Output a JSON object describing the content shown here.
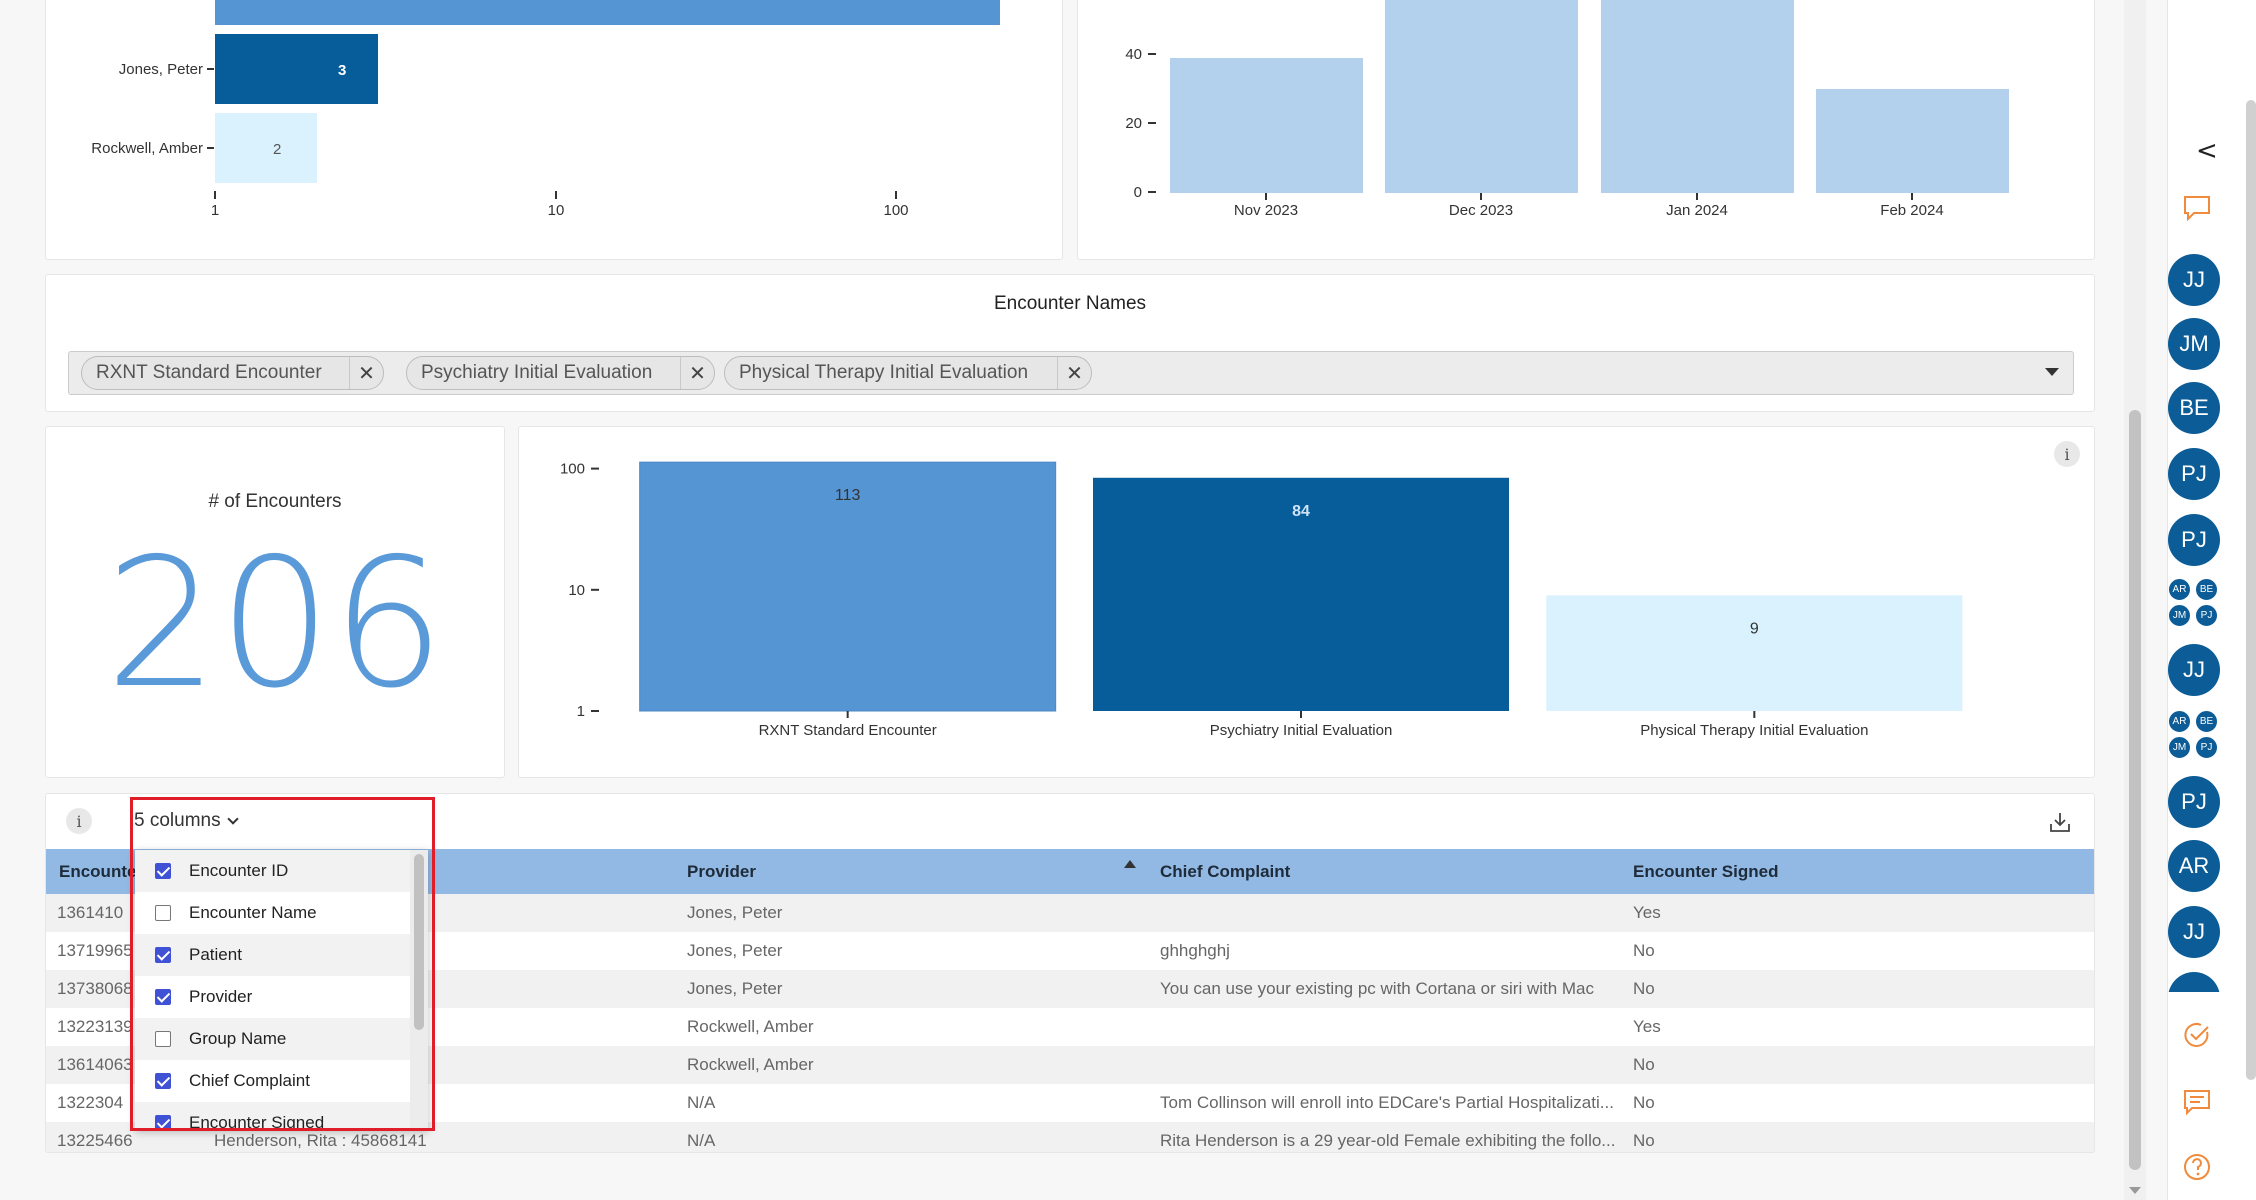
{
  "top_left_chart": {
    "bars": [
      {
        "label": "",
        "value_text": ""
      },
      {
        "label": "Jones, Peter",
        "value_text": "3"
      },
      {
        "label": "Rockwell, Amber",
        "value_text": "2"
      }
    ],
    "x_ticks": [
      "1",
      "10",
      "100"
    ]
  },
  "top_right_chart": {
    "categories": [
      "Nov 2023",
      "Dec 2023",
      "Jan 2024",
      "Feb 2024"
    ],
    "y_ticks": [
      "0",
      "20",
      "40"
    ]
  },
  "encounter_names": {
    "title": "Encounter Names",
    "chips": [
      "RXNT Standard Encounter",
      "Psychiatry Initial Evaluation",
      "Physical Therapy Initial Evaluation"
    ],
    "remove_glyph": "✕"
  },
  "count_card": {
    "title": "# of Encounters",
    "value": "206"
  },
  "chart_data": {
    "type": "bar",
    "categories": [
      "RXNT Standard Encounter",
      "Psychiatry Initial Evaluation",
      "Physical Therapy Initial Evaluation"
    ],
    "values": [
      113,
      84,
      9
    ],
    "value_labels": [
      "113",
      "84",
      "9"
    ],
    "y_scale": "log",
    "y_ticks": [
      "1",
      "10",
      "100"
    ],
    "ylim": [
      1,
      120
    ],
    "colors": [
      "#5595d4",
      "#065d9a",
      "#d9f2fd"
    ]
  },
  "info_glyph": "i",
  "table": {
    "columns_toggle": "5 columns",
    "headers": [
      "Encounter ID",
      "Provider",
      "Chief Complaint",
      "Encounter Signed"
    ],
    "rows": [
      {
        "id": "1361410",
        "patient": "",
        "provider": "Jones, Peter",
        "complaint": "",
        "signed": "Yes"
      },
      {
        "id": "13719965",
        "patient": "",
        "provider": "Jones, Peter",
        "complaint": "ghhghghj",
        "signed": "No"
      },
      {
        "id": "13738068",
        "patient": "",
        "provider": "Jones, Peter",
        "complaint": "You can use your existing pc with Cortana or siri with Mac",
        "signed": "No"
      },
      {
        "id": "13223139",
        "patient": "",
        "provider": "Rockwell, Amber",
        "complaint": "",
        "signed": "Yes"
      },
      {
        "id": "13614063",
        "patient": "",
        "provider": "Rockwell, Amber",
        "complaint": "",
        "signed": "No"
      },
      {
        "id": "1322304",
        "patient": "",
        "provider": "N/A",
        "complaint": "Tom Collinson will enroll into EDCare's Partial Hospitalizati...",
        "signed": "No"
      },
      {
        "id": "13225466",
        "patient": "Henderson, Rita : 45868141",
        "provider": "N/A",
        "complaint": "Rita Henderson is a 29 year-old Female exhibiting the follo...",
        "signed": "No"
      }
    ]
  },
  "column_menu": {
    "items": [
      {
        "label": "Encounter ID",
        "checked": true
      },
      {
        "label": "Encounter Name",
        "checked": false
      },
      {
        "label": "Patient",
        "checked": true
      },
      {
        "label": "Provider",
        "checked": true
      },
      {
        "label": "Group Name",
        "checked": false
      },
      {
        "label": "Chief Complaint",
        "checked": true
      },
      {
        "label": "Encounter Signed",
        "checked": true
      }
    ]
  },
  "sidebar": {
    "collapse_glyph": "<",
    "avatars": [
      "JJ",
      "JM",
      "BE",
      "PJ",
      "PJ",
      "",
      "JJ",
      "",
      "PJ",
      "AR",
      "JJ"
    ],
    "group_avatars": [
      "AR",
      "BE",
      "JM",
      "PJ"
    ]
  },
  "colors": {
    "accent_blue": "#5595d4",
    "dark_blue": "#065d9a",
    "light_blue": "#d9f2fd",
    "pale_blue": "#b3d0ed",
    "header_blue": "#92b9e3",
    "avatar_blue": "#0c5c97",
    "highlight_red": "#e01e2a",
    "orange": "#f08a3c"
  }
}
